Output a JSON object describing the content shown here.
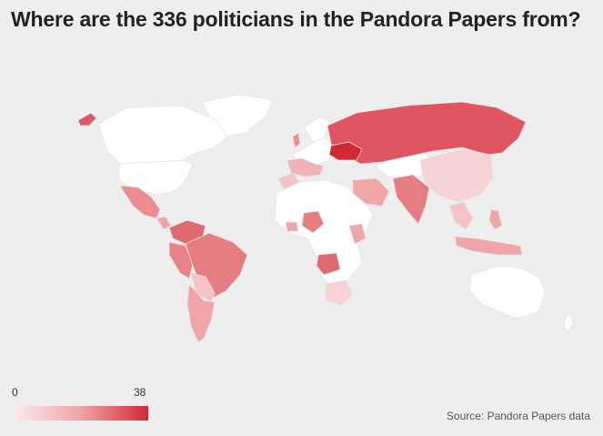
{
  "title": "Where are the 336 politicians in the Pandora Papers from?",
  "legend": {
    "min_label": "0",
    "max_label": "38",
    "color_low": "#fbecec",
    "color_high": "#d12a33"
  },
  "source": "Source: Pandora Papers data",
  "colors": {
    "background": "#eeeeee",
    "no_data": "#ffffff",
    "border": "#e4e4e4"
  },
  "regions": [
    {
      "name": "Ukraine",
      "value": 38
    },
    {
      "name": "Russia",
      "value": 24
    },
    {
      "name": "Brazil",
      "value": 19
    },
    {
      "name": "Angola",
      "value": 18
    },
    {
      "name": "Colombia",
      "value": 16
    },
    {
      "name": "Venezuela",
      "value": 16
    },
    {
      "name": "Nigeria",
      "value": 15
    },
    {
      "name": "India",
      "value": 15
    },
    {
      "name": "UAE",
      "value": 14
    },
    {
      "name": "Mexico",
      "value": 11
    },
    {
      "name": "Kenya",
      "value": 10
    },
    {
      "name": "Ecuador",
      "value": 10
    },
    {
      "name": "Argentina",
      "value": 8
    },
    {
      "name": "Peru",
      "value": 8
    },
    {
      "name": "Saudi Arabia",
      "value": 7
    },
    {
      "name": "Indonesia",
      "value": 6
    },
    {
      "name": "Philippines",
      "value": 6
    },
    {
      "name": "Malaysia",
      "value": 5
    },
    {
      "name": "China",
      "value": 4
    },
    {
      "name": "Chile",
      "value": 4
    },
    {
      "name": "Pakistan",
      "value": 6
    },
    {
      "name": "South Africa",
      "value": 3
    },
    {
      "name": "Morocco",
      "value": 3
    },
    {
      "name": "Greenland",
      "value": 0
    },
    {
      "name": "Canada",
      "value": 0
    },
    {
      "name": "United States",
      "value": 0
    },
    {
      "name": "Australia",
      "value": 0
    }
  ]
}
